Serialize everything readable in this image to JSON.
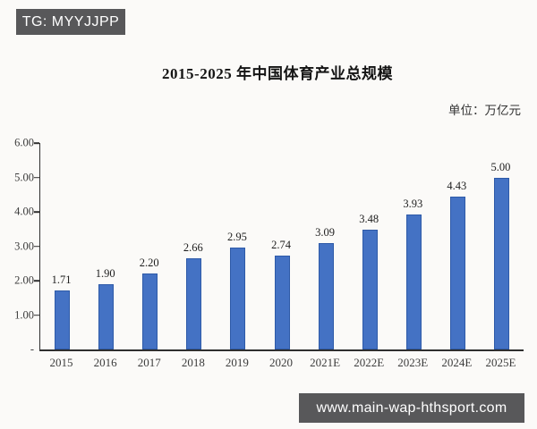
{
  "watermark_badge": {
    "label": "TG: MYYJJPP",
    "bg_color": "#58585a",
    "text_color": "#ffffff"
  },
  "footer_bar": {
    "label": "www.main-wap-hthsport.com",
    "bg_color": "#58585a",
    "text_color": "#ffffff"
  },
  "chart_data": {
    "type": "bar",
    "title": "2015-2025 年中国体育产业总规模",
    "unit_label": "单位：万亿元",
    "categories": [
      "2015",
      "2016",
      "2017",
      "2018",
      "2019",
      "2020",
      "2021E",
      "2022E",
      "2023E",
      "2024E",
      "2025E"
    ],
    "values": [
      1.71,
      1.9,
      2.2,
      2.66,
      2.95,
      2.74,
      3.09,
      3.48,
      3.93,
      4.43,
      5.0
    ],
    "data_labels": [
      "1.71",
      "1.90",
      "2.20",
      "2.66",
      "2.95",
      "2.74",
      "3.09",
      "3.48",
      "3.93",
      "4.43",
      "5.00"
    ],
    "xlabel": "",
    "ylabel": "",
    "ylim": [
      0,
      6
    ],
    "y_tick_values": [
      6,
      5,
      4,
      3,
      2,
      1,
      0
    ],
    "y_tick_labels": [
      "6.00",
      "5.00",
      "4.00",
      "3.00",
      "2.00",
      "1.00",
      "-"
    ],
    "grid": false,
    "legend": false,
    "bar_color": "#4472c4",
    "bar_border_color": "#2e5aa8",
    "axis_color": "#2f2f2f"
  }
}
